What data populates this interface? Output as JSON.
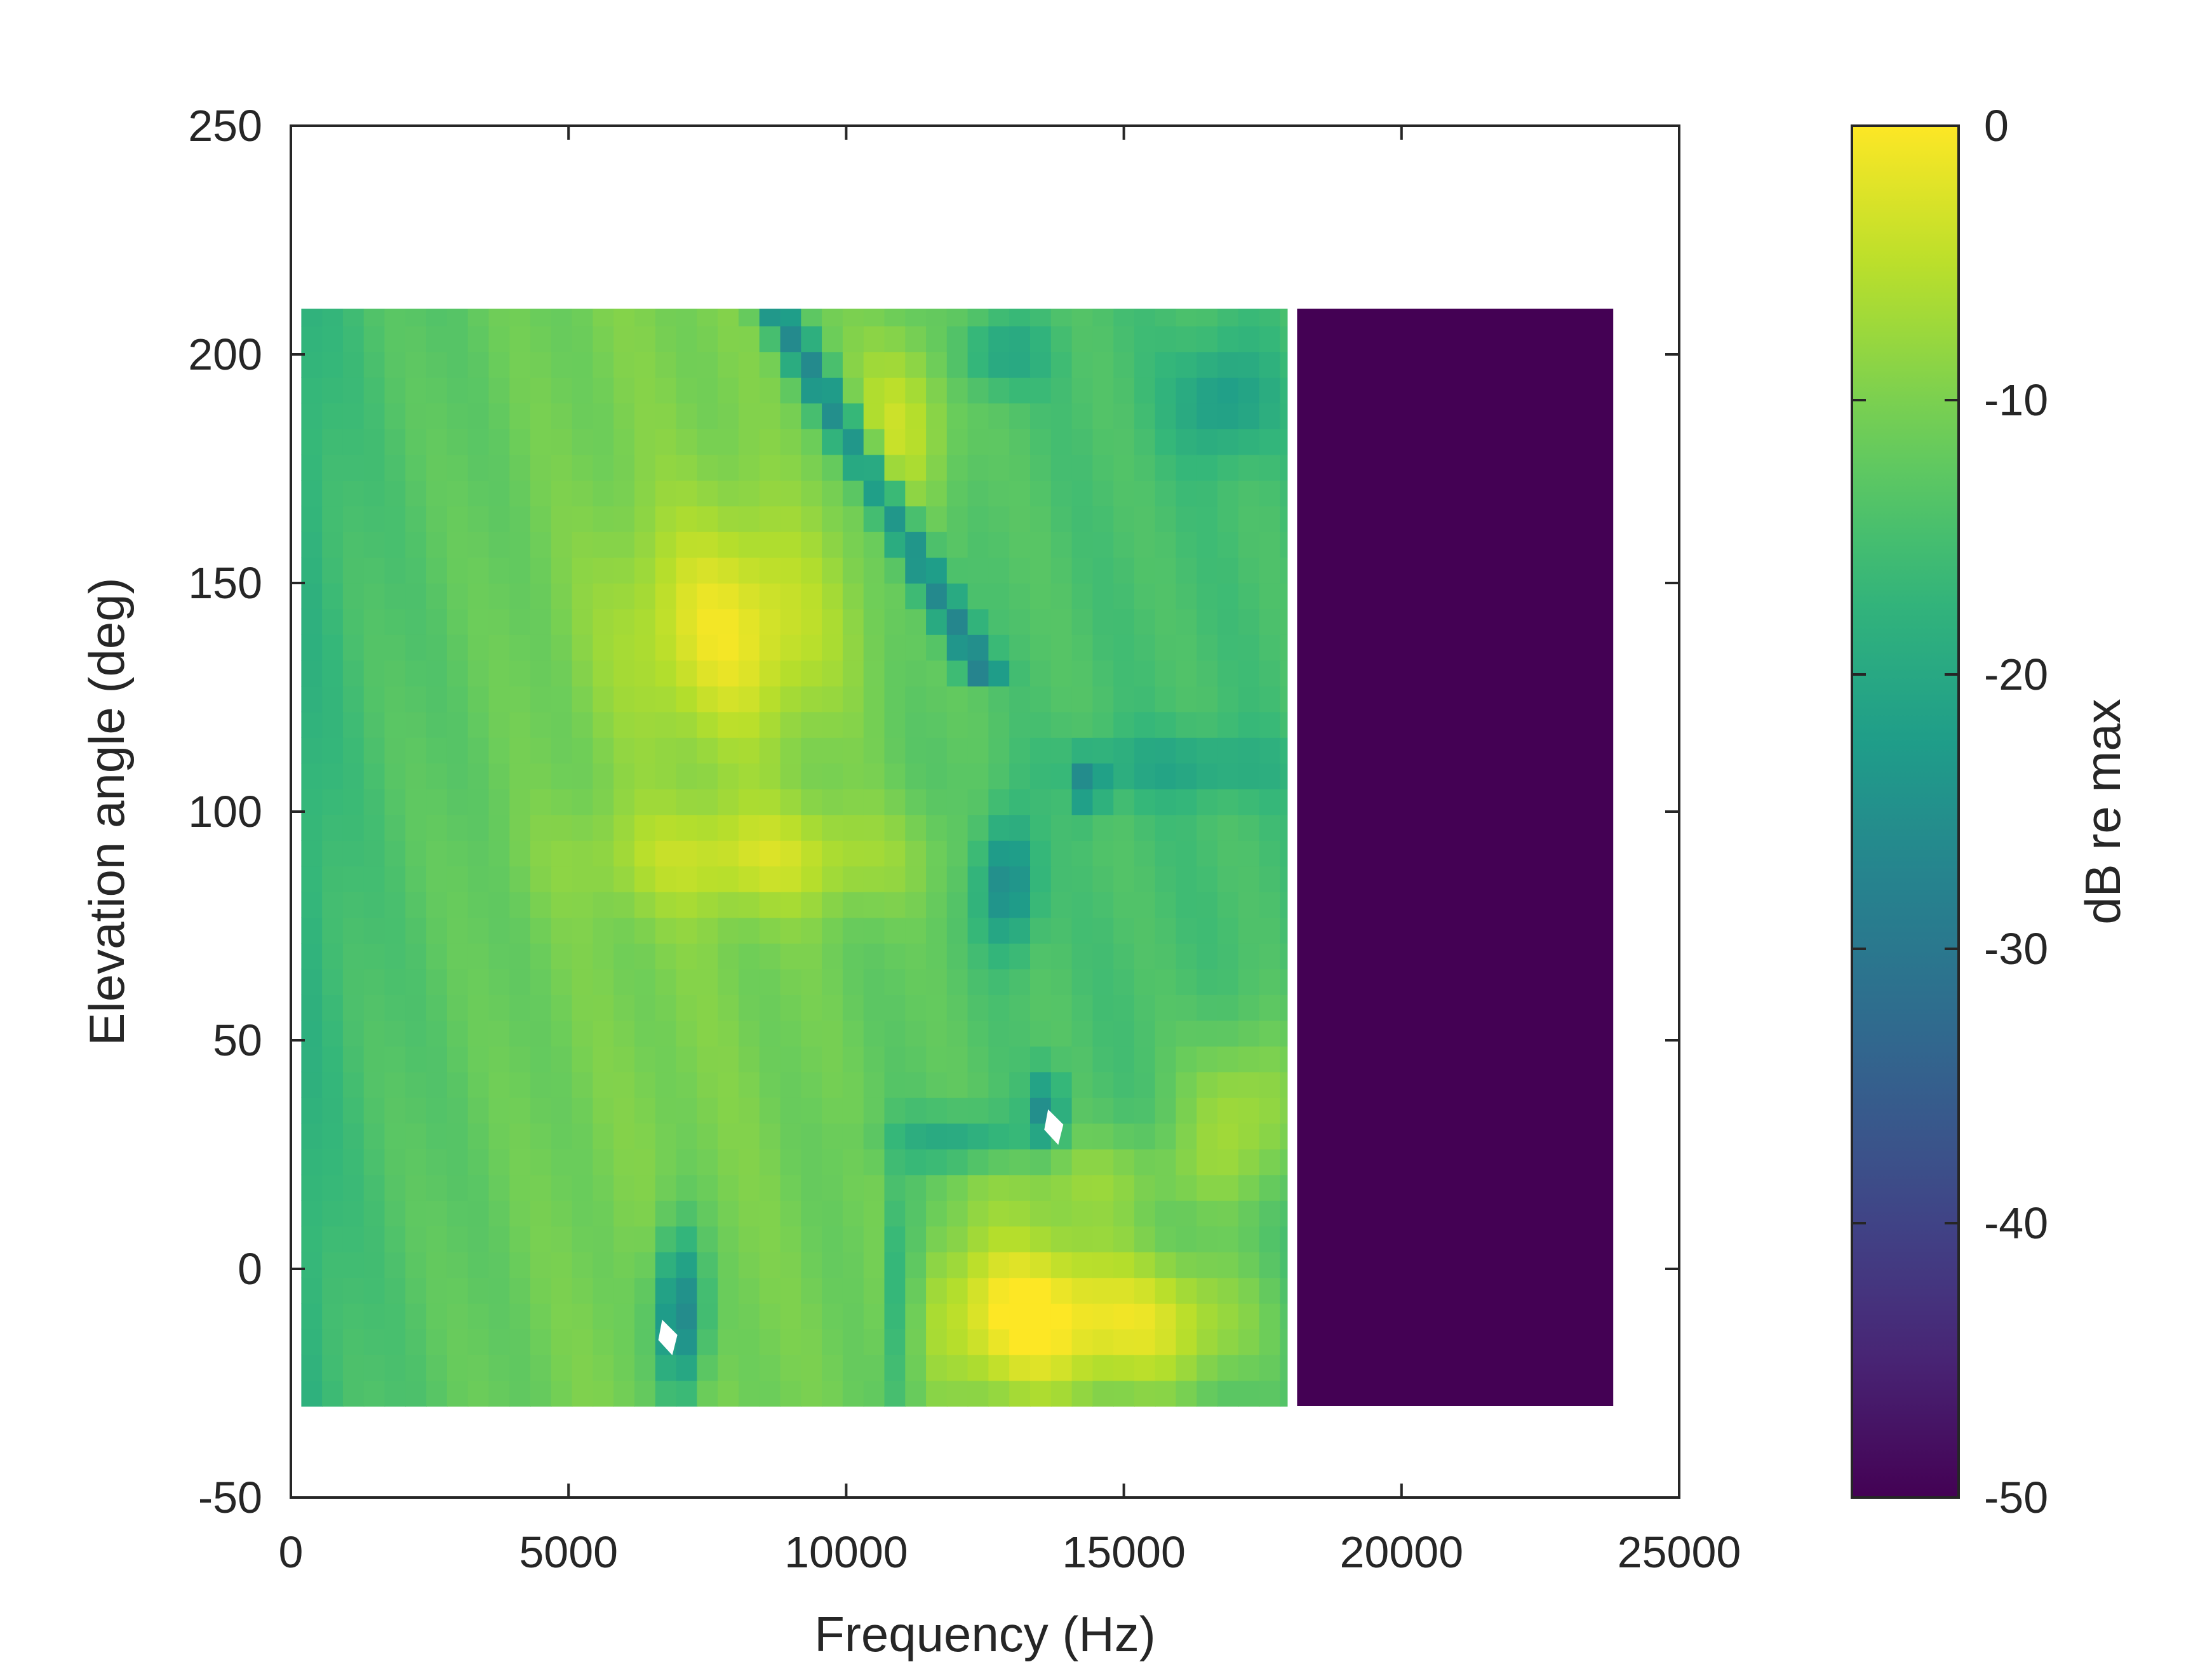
{
  "chart_data": {
    "type": "heatmap",
    "title": "",
    "xlabel": "Frequency (Hz)",
    "ylabel": "Elevation angle (deg)",
    "xlim": [
      0,
      25000
    ],
    "ylim": [
      -50,
      250
    ],
    "x_ticks": [
      0,
      5000,
      10000,
      15000,
      20000,
      25000
    ],
    "y_ticks": [
      -50,
      0,
      50,
      100,
      150,
      200,
      250
    ],
    "data_extent": {
      "x": [
        187,
        23813
      ],
      "y": [
        -30,
        210
      ]
    },
    "elevation_step_deg": 5.625,
    "frequency_step_hz": 375,
    "no_data_above_hz": 18000,
    "colormap": "viridis",
    "colorbar": {
      "label": "dB re max",
      "range": [
        -50,
        0
      ],
      "ticks": [
        0,
        -10,
        -20,
        -30,
        -40,
        -50
      ],
      "tick_labels": [
        "0",
        "-10",
        "-20",
        "-30",
        "-40",
        "-50"
      ]
    },
    "grid": false,
    "features": [
      {
        "description": "dark notch",
        "freq_hz": [
          9200,
          12000
        ],
        "elev_deg": [
          140,
          200
        ],
        "level_db": -32
      },
      {
        "description": "dark notch",
        "freq_hz": [
          12300,
          13700
        ],
        "elev_deg": [
          70,
          100
        ],
        "level_db": -30
      },
      {
        "description": "dark notch",
        "freq_hz": [
          14200,
          14600
        ],
        "elev_deg": [
          101,
          110
        ],
        "level_db": -40
      },
      {
        "description": "dark notch",
        "freq_hz": [
          6500,
          7800
        ],
        "elev_deg": [
          -30,
          5
        ],
        "level_db": -35
      },
      {
        "description": "dark notch",
        "freq_hz": [
          10800,
          11200
        ],
        "elev_deg": [
          -30,
          20
        ],
        "level_db": -28
      },
      {
        "description": "bright peak",
        "freq_hz": [
          12000,
          14500
        ],
        "elev_deg": [
          -25,
          15
        ],
        "level_db": -2
      },
      {
        "description": "bright region",
        "freq_hz": [
          6500,
          9000
        ],
        "elev_deg": [
          120,
          160
        ],
        "level_db": -6
      },
      {
        "description": "bright region",
        "freq_hz": [
          6500,
          11500
        ],
        "elev_deg": [
          80,
          100
        ],
        "level_db": -7
      },
      {
        "description": "bright region",
        "freq_hz": [
          10500,
          11500
        ],
        "elev_deg": [
          170,
          200
        ],
        "level_db": -5
      }
    ]
  }
}
